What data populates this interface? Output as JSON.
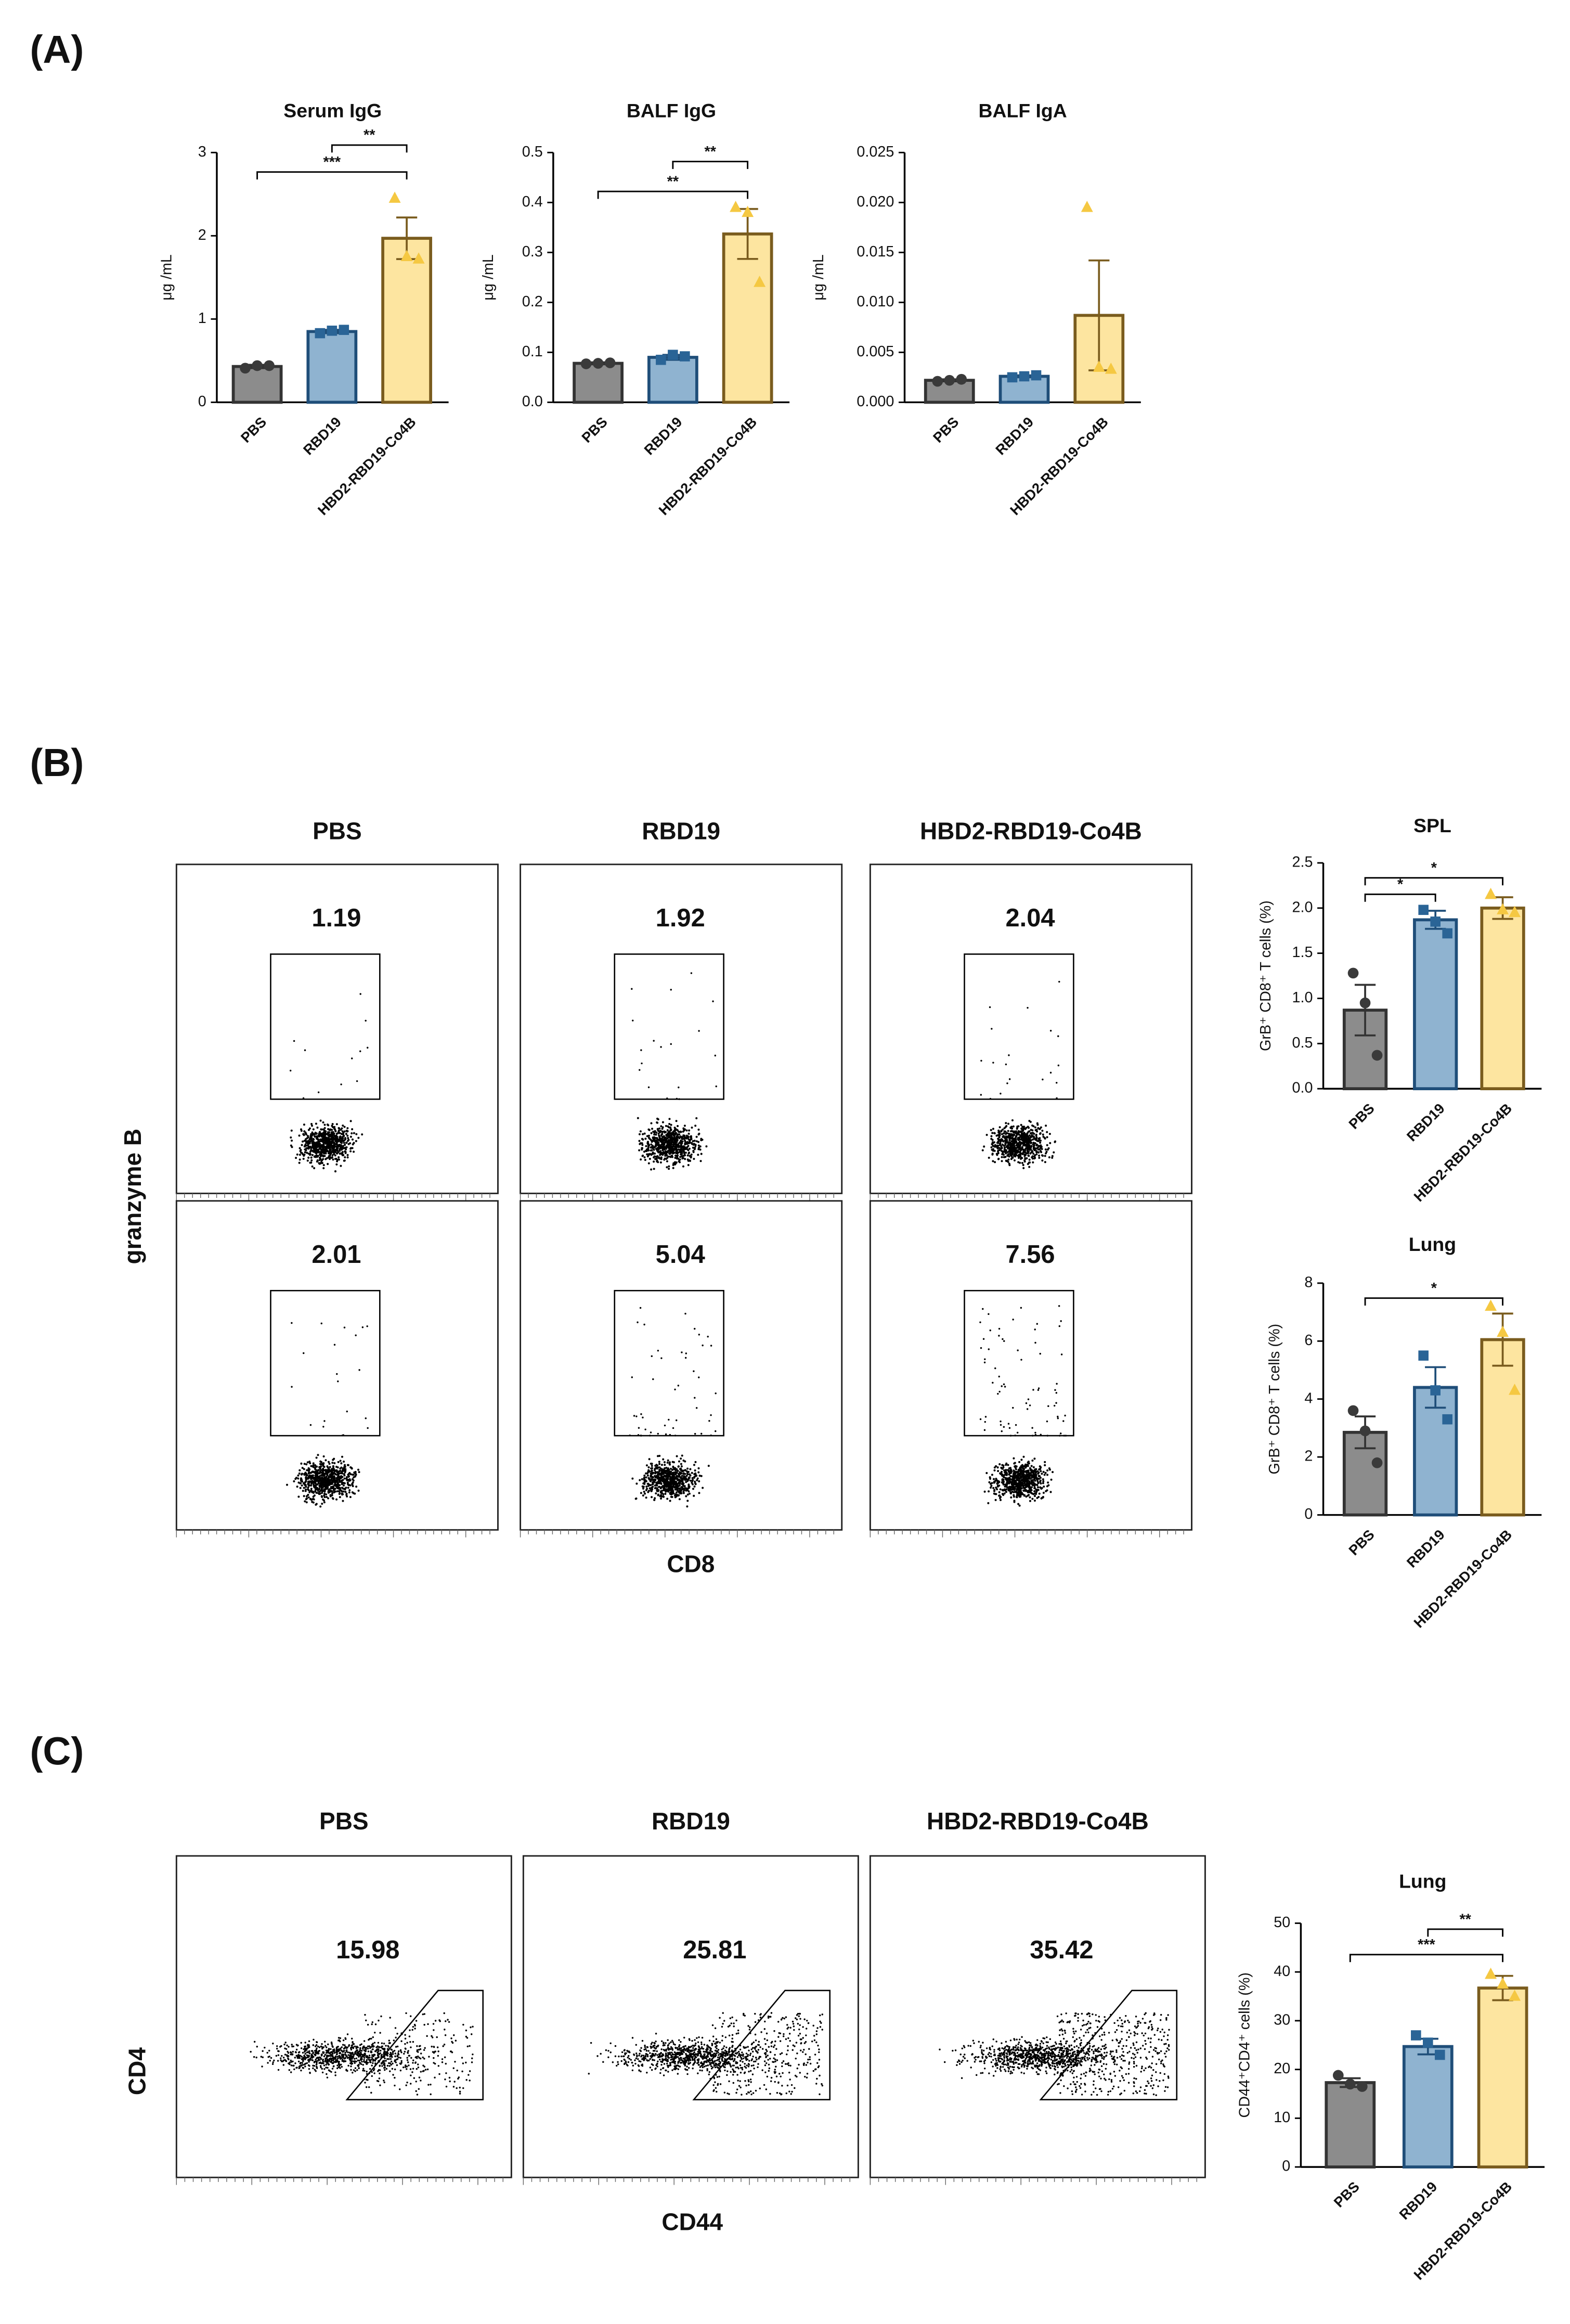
{
  "panel_labels": [
    "(A)",
    "(B)",
    "(C)"
  ],
  "chart_data": [
    {
      "type": "bar",
      "title": "Serum IgG",
      "ylabel": "μg /mL",
      "categories": [
        "PBS",
        "RBD19",
        "HBD2-RBD19-Co4B"
      ],
      "values": [
        0.43,
        0.85,
        1.97
      ],
      "errors": [
        0.02,
        0.02,
        0.25
      ],
      "points": [
        [
          0.41,
          0.44,
          0.44
        ],
        [
          0.83,
          0.86,
          0.87
        ],
        [
          2.45,
          1.75,
          1.72
        ]
      ],
      "colors": [
        "#8c8c8c",
        "#8fb3d0",
        "#fde5a0"
      ],
      "ylim": [
        0,
        3
      ],
      "yticks": [
        0,
        1,
        2,
        3
      ],
      "significance": [
        {
          "groups": [
            0,
            2
          ],
          "label": "***"
        },
        {
          "groups": [
            1,
            2
          ],
          "label": "**"
        }
      ]
    },
    {
      "type": "bar",
      "title": "BALF IgG",
      "ylabel": "μg /mL",
      "categories": [
        "PBS",
        "RBD19",
        "HBD2-RBD19-Co4B"
      ],
      "values": [
        0.078,
        0.09,
        0.337
      ],
      "errors": [
        0.002,
        0.005,
        0.05
      ],
      "points": [
        [
          0.077,
          0.078,
          0.079
        ],
        [
          0.085,
          0.095,
          0.092
        ],
        [
          0.39,
          0.38,
          0.24
        ]
      ],
      "colors": [
        "#8c8c8c",
        "#8fb3d0",
        "#fde5a0"
      ],
      "ylim": [
        0,
        0.5
      ],
      "yticks": [
        {
          "value": 0,
          "label": "0.0"
        },
        0.1,
        0.2,
        0.3,
        0.4,
        0.5
      ],
      "significance": [
        {
          "groups": [
            0,
            2
          ],
          "label": "**"
        },
        {
          "groups": [
            1,
            2
          ],
          "label": "**"
        }
      ]
    },
    {
      "type": "bar",
      "title": "BALF IgA",
      "ylabel": "μg /mL",
      "categories": [
        "PBS",
        "RBD19",
        "HBD2-RBD19-Co4B"
      ],
      "values": [
        0.0022,
        0.0026,
        0.0087
      ],
      "errors": [
        0.0001,
        0.0001,
        0.0055
      ],
      "points": [
        [
          0.0021,
          0.0022,
          0.0023
        ],
        [
          0.0025,
          0.0026,
          0.0027
        ],
        [
          0.0195,
          0.0035,
          0.0033
        ]
      ],
      "colors": [
        "#8c8c8c",
        "#8fb3d0",
        "#fde5a0"
      ],
      "ylim": [
        0,
        0.025
      ],
      "yticks": [
        {
          "value": 0,
          "label": "0.000"
        },
        0.005,
        {
          "value": 0.01,
          "label": "0.010"
        },
        0.015,
        {
          "value": 0.02,
          "label": "0.020"
        },
        0.025
      ],
      "significance": []
    },
    {
      "type": "bar",
      "title": "SPL",
      "ylabel": "GrB⁺ CD8⁺ T cells (%)",
      "categories": [
        "PBS",
        "RBD19",
        "HBD2-RBD19-Co4B"
      ],
      "values": [
        0.87,
        1.87,
        2.0
      ],
      "errors": [
        0.28,
        0.1,
        0.12
      ],
      "points": [
        [
          1.28,
          0.95,
          0.37
        ],
        [
          1.98,
          1.85,
          1.72
        ],
        [
          2.15,
          1.98,
          1.95
        ]
      ],
      "colors": [
        "#8c8c8c",
        "#8fb3d0",
        "#fde5a0"
      ],
      "ylim": [
        0,
        2.5
      ],
      "yticks": [
        {
          "value": 0,
          "label": "0.0"
        },
        0.5,
        {
          "value": 1,
          "label": "1.0"
        },
        1.5,
        {
          "value": 2,
          "label": "2.0"
        },
        2.5
      ],
      "significance": [
        {
          "groups": [
            0,
            1
          ],
          "label": "*"
        },
        {
          "groups": [
            0,
            2
          ],
          "label": "*"
        }
      ]
    },
    {
      "type": "bar",
      "title": "Lung",
      "ylabel": "GrB⁺ CD8⁺ T cells (%)",
      "categories": [
        "PBS",
        "RBD19",
        "HBD2-RBD19-Co4B"
      ],
      "values": [
        2.85,
        4.4,
        6.05
      ],
      "errors": [
        0.55,
        0.7,
        0.9
      ],
      "points": [
        [
          3.6,
          2.9,
          1.8
        ],
        [
          5.5,
          4.3,
          3.3
        ],
        [
          7.2,
          6.3,
          4.3
        ]
      ],
      "colors": [
        "#8c8c8c",
        "#8fb3d0",
        "#fde5a0"
      ],
      "ylim": [
        0,
        8
      ],
      "yticks": [
        0,
        2,
        4,
        6,
        8
      ],
      "significance": [
        {
          "groups": [
            0,
            2
          ],
          "label": "*"
        }
      ]
    },
    {
      "type": "bar",
      "title": "Lung",
      "ylabel": "CD44⁺CD4⁺ cells (%)",
      "categories": [
        "PBS",
        "RBD19",
        "HBD2-RBD19-Co4B"
      ],
      "values": [
        17.3,
        24.7,
        36.7
      ],
      "errors": [
        0.9,
        1.6,
        2.5
      ],
      "points": [
        [
          18.8,
          17,
          16.5
        ],
        [
          27,
          25.5,
          23
        ],
        [
          39.5,
          37.5,
          35
        ]
      ],
      "colors": [
        "#8c8c8c",
        "#8fb3d0",
        "#fde5a0"
      ],
      "ylim": [
        0,
        50
      ],
      "yticks": [
        0,
        10,
        20,
        30,
        40,
        50
      ],
      "significance": [
        {
          "groups": [
            0,
            2
          ],
          "label": "***"
        },
        {
          "groups": [
            1,
            2
          ],
          "label": "**"
        }
      ]
    }
  ],
  "flow_panels": [
    {
      "columns": [
        "PBS",
        "RBD19",
        "HBD2-RBD19-Co4B"
      ],
      "ylabel": "granzyme B",
      "xlabel": "CD8",
      "gates": [
        [
          1.19,
          1.92,
          2.04
        ],
        [
          2.01,
          5.04,
          7.56
        ]
      ]
    },
    {
      "columns": [
        "PBS",
        "RBD19",
        "HBD2-RBD19-Co4B"
      ],
      "ylabel": "CD4",
      "xlabel": "CD44",
      "gates": [
        [
          15.98,
          25.81,
          35.42
        ]
      ]
    }
  ]
}
